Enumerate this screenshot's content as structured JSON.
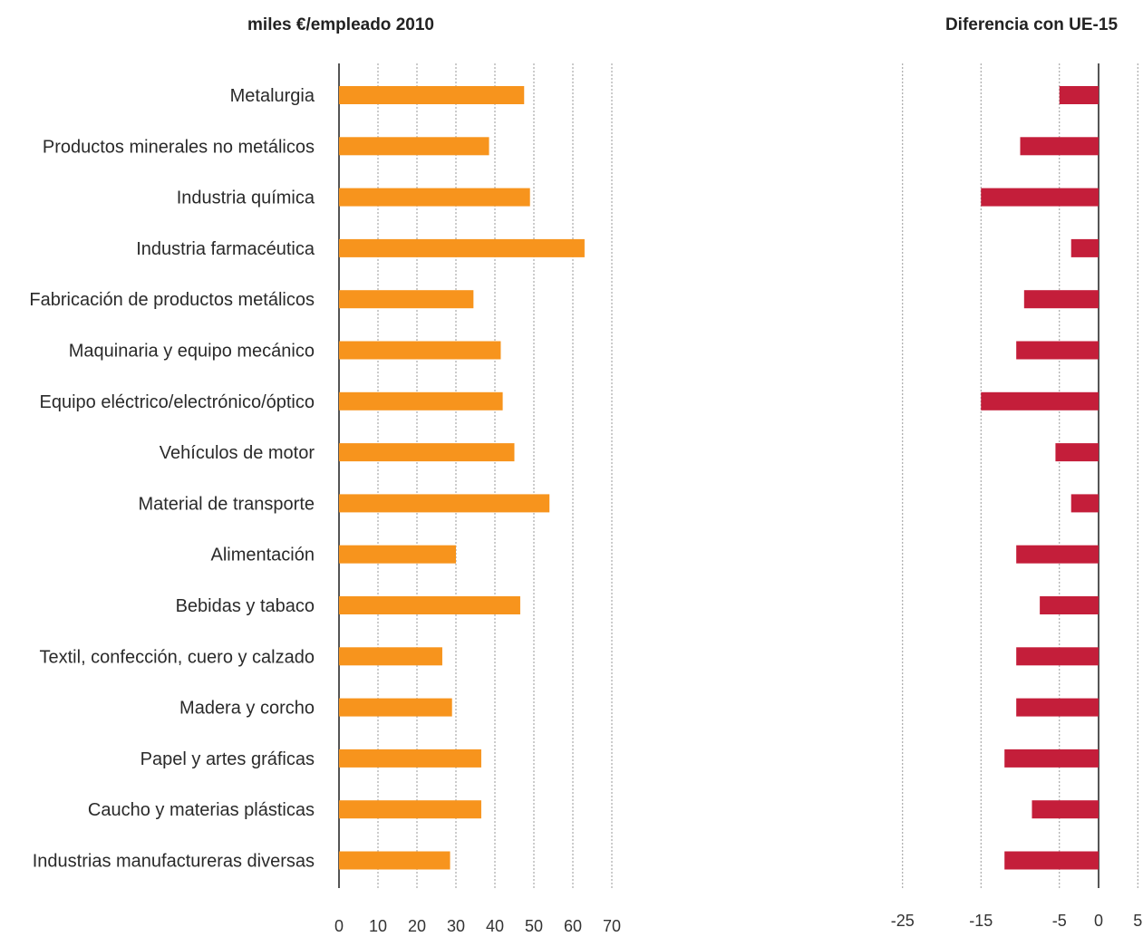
{
  "chart_data": [
    {
      "type": "bar",
      "orientation": "horizontal",
      "title": "miles €/empleado 2010",
      "categories": [
        "Metalurgia",
        "Productos minerales no metálicos",
        "Industria química",
        "Industria farmacéutica",
        "Fabricación de productos metálicos",
        "Maquinaria y equipo mecánico",
        "Equipo eléctrico/electrónico/óptico",
        "Vehículos de motor",
        "Material de transporte",
        "Alimentación",
        "Bebidas y tabaco",
        "Textil, confección, cuero y calzado",
        "Madera y corcho",
        "Papel y artes gráficas",
        "Caucho y materias plásticas",
        "Industrias manufactureras diversas"
      ],
      "values": [
        47.5,
        38.5,
        49,
        63,
        34.5,
        41.5,
        42,
        45,
        54,
        30,
        46.5,
        26.5,
        29,
        36.5,
        36.5,
        28.5
      ],
      "xlim": [
        0,
        70
      ],
      "ticks": [
        "0",
        "10",
        "20",
        "30",
        "40",
        "50",
        "60",
        "70"
      ],
      "color": "#f7941d",
      "grid": "vertical dotted"
    },
    {
      "type": "bar",
      "orientation": "horizontal",
      "title": "Diferencia con UE-15",
      "values": [
        -5,
        -10,
        -15,
        -3.5,
        -9.5,
        -10.5,
        -15,
        -5.5,
        -3.5,
        -10.5,
        -7.5,
        -10.5,
        -10.5,
        -12,
        -8.5,
        -12
      ],
      "xlim": [
        -25,
        5
      ],
      "ticks": [
        "-25",
        "-15",
        "-5",
        "0",
        "5"
      ],
      "color": "#c41e3a",
      "grid": "vertical dotted"
    }
  ]
}
